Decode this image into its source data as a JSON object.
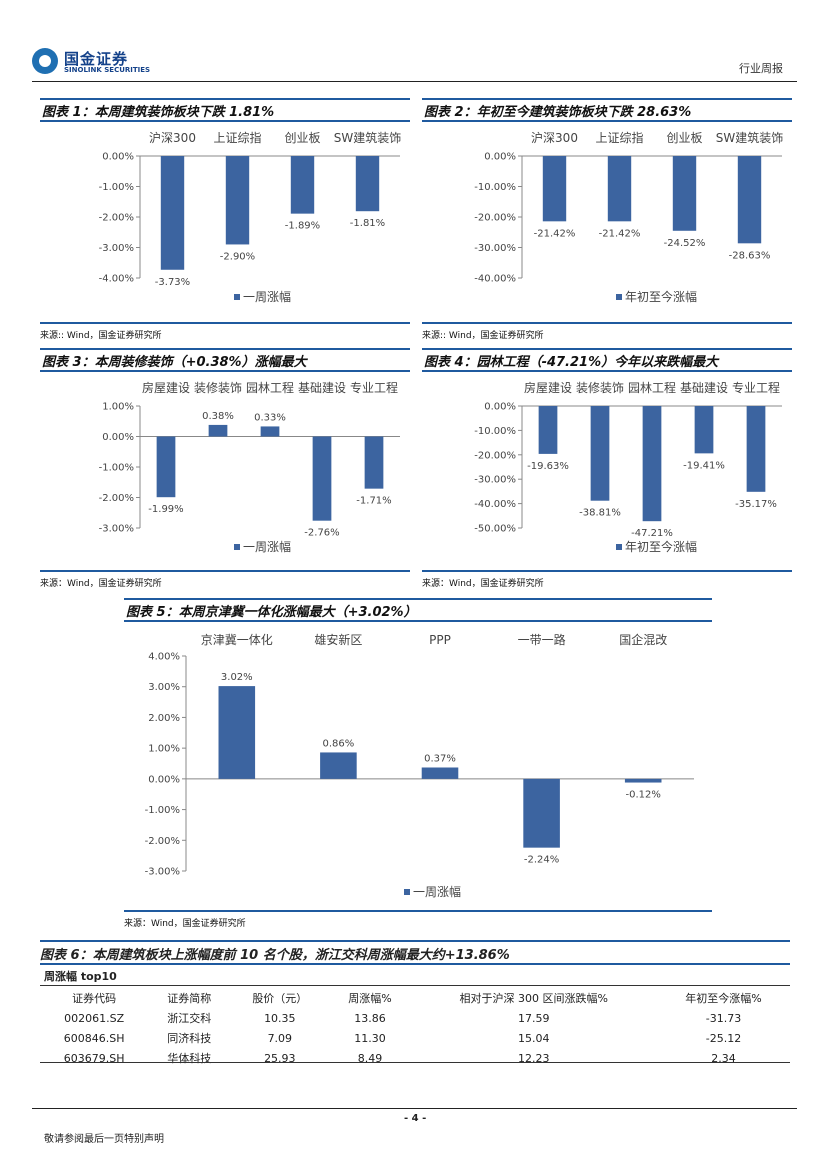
{
  "header": {
    "logo_cn": "国金证券",
    "logo_en": "SINOLINK SECURITIES",
    "tag": "行业周报"
  },
  "colors": {
    "bar": "#3c64a0",
    "rule": "#1f5a9f",
    "logo": "#14428a"
  },
  "source_text": "来源:: Wind，国金证券研究所",
  "source_text2": "来源：Wind，国金证券研究所",
  "chart_data": [
    {
      "type": "bar",
      "title": "图表 1：本周建筑装饰板块下跌 1.81%",
      "categories": [
        "沪深300",
        "上证综指",
        "创业板",
        "SW建筑装饰"
      ],
      "series": [
        {
          "name": "一周涨幅",
          "values": [
            -3.73,
            -2.9,
            -1.89,
            -1.81
          ]
        }
      ],
      "data_labels": [
        "-3.73%",
        "-2.90%",
        "-1.89%",
        "-1.81%"
      ],
      "yticks": [
        "0.00%",
        "-1.00%",
        "-2.00%",
        "-3.00%",
        "-4.00%"
      ],
      "ylim": [
        -4,
        0
      ]
    },
    {
      "type": "bar",
      "title": "图表 2：年初至今建筑装饰板块下跌 28.63%",
      "categories": [
        "沪深300",
        "上证综指",
        "创业板",
        "SW建筑装饰"
      ],
      "series": [
        {
          "name": "年初至今涨幅",
          "values": [
            -21.42,
            -21.42,
            -24.52,
            -28.63
          ]
        }
      ],
      "data_labels": [
        "-21.42%",
        "-21.42%",
        "-24.52%",
        "-28.63%"
      ],
      "yticks": [
        "0.00%",
        "-10.00%",
        "-20.00%",
        "-30.00%",
        "-40.00%"
      ],
      "ylim": [
        -40,
        0
      ]
    },
    {
      "type": "bar",
      "title": "图表 3：本周装修装饰（+0.38%）涨幅最大",
      "categories": [
        "房屋建设",
        "装修装饰",
        "园林工程",
        "基础建设",
        "专业工程"
      ],
      "series": [
        {
          "name": "一周涨幅",
          "values": [
            -1.99,
            0.38,
            0.33,
            -2.76,
            -1.71
          ]
        }
      ],
      "data_labels": [
        "-1.99%",
        "0.38%",
        "0.33%",
        "-2.76%",
        "-1.71%"
      ],
      "yticks": [
        "1.00%",
        "0.00%",
        "-1.00%",
        "-2.00%",
        "-3.00%"
      ],
      "ylim": [
        -3,
        1
      ]
    },
    {
      "type": "bar",
      "title": "图表 4：园林工程（-47.21%）今年以来跌幅最大",
      "categories": [
        "房屋建设",
        "装修装饰",
        "园林工程",
        "基础建设",
        "专业工程"
      ],
      "series": [
        {
          "name": "年初至今涨幅",
          "values": [
            -19.63,
            -38.81,
            -47.21,
            -19.41,
            -35.17
          ]
        }
      ],
      "data_labels": [
        "-19.63%",
        "-38.81%",
        "-47.21%",
        "-19.41%",
        "-35.17%"
      ],
      "yticks": [
        "0.00%",
        "-10.00%",
        "-20.00%",
        "-30.00%",
        "-40.00%",
        "-50.00%"
      ],
      "ylim": [
        -50,
        0
      ]
    },
    {
      "type": "bar",
      "title": "图表 5：本周京津冀一体化涨幅最大（+3.02%）",
      "categories": [
        "京津冀一体化",
        "雄安新区",
        "PPP",
        "一带一路",
        "国企混改"
      ],
      "series": [
        {
          "name": "一周涨幅",
          "values": [
            3.02,
            0.86,
            0.37,
            -2.24,
            -0.12
          ]
        }
      ],
      "data_labels": [
        "3.02%",
        "0.86%",
        "0.37%",
        "-2.24%",
        "-0.12%"
      ],
      "yticks": [
        "4.00%",
        "3.00%",
        "2.00%",
        "1.00%",
        "0.00%",
        "-1.00%",
        "-2.00%",
        "-3.00%"
      ],
      "ylim": [
        -3,
        4
      ]
    }
  ],
  "table": {
    "title": "图表 6：本周建筑板块上涨幅度前 10 名个股，浙江交科周涨幅最大约+13.86%",
    "subtitle": "周涨幅 top10",
    "headers": [
      "证券代码",
      "证券简称",
      "股价（元）",
      "周涨幅%",
      "相对于沪深 300 区间涨跌幅%",
      "年初至今涨幅%"
    ],
    "rows": [
      [
        "002061.SZ",
        "浙江交科",
        "10.35",
        "13.86",
        "17.59",
        "-31.73"
      ],
      [
        "600846.SH",
        "同济科技",
        "7.09",
        "11.30",
        "15.04",
        "-25.12"
      ],
      [
        "603679.SH",
        "华体科技",
        "25.93",
        "8.49",
        "12.23",
        "2.34"
      ]
    ]
  },
  "footer": {
    "page": "- 4 -",
    "disclaimer": "敬请参阅最后一页特别声明"
  }
}
